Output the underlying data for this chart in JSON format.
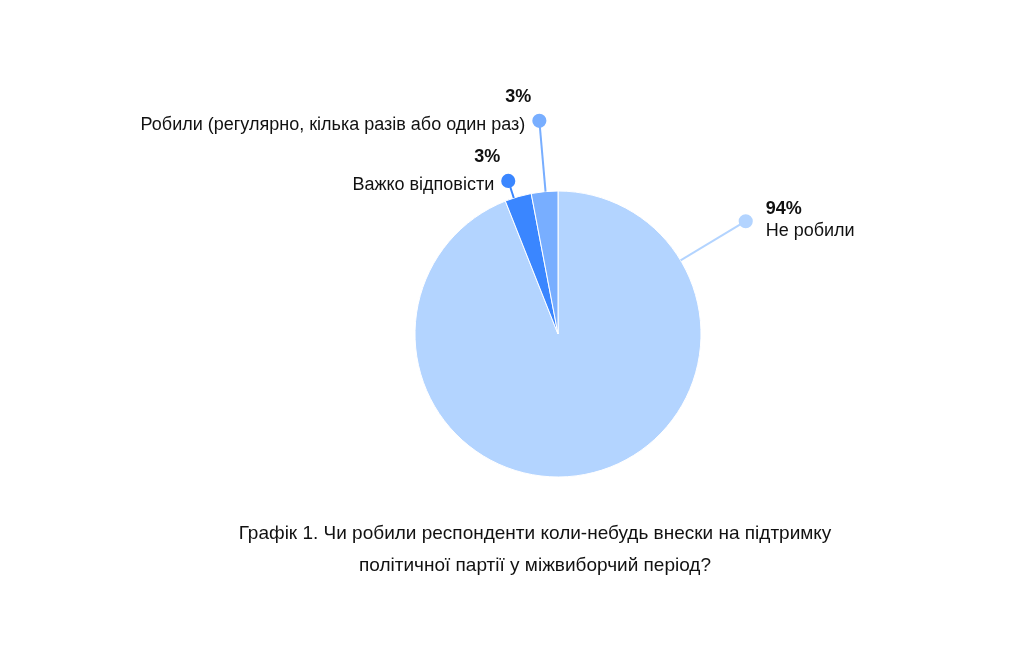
{
  "chart_data": {
    "type": "pie",
    "title": "Графік 1. Чи робили респонденти коли-небудь внески на підтримку\nполітичної партії у міжвиборчий період?",
    "categories": [
      "Не робили",
      "Важко відповісти",
      "Робили (регулярно, кілька разів або один раз)"
    ],
    "values": [
      94,
      3,
      3
    ],
    "value_labels": [
      "94%",
      "3%",
      "3%"
    ],
    "colors": [
      "#b3d4ff",
      "#3a86ff",
      "#78aeff"
    ],
    "legend": "top left"
  }
}
